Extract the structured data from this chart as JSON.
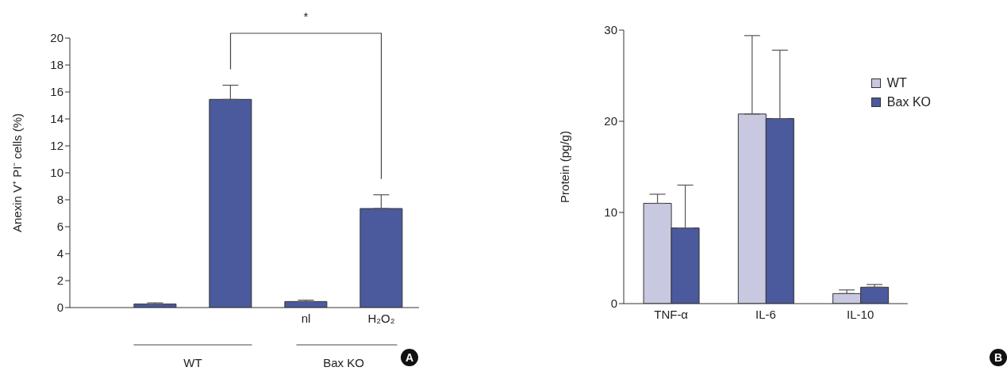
{
  "chart_data": [
    {
      "type": "bar",
      "ylabel": "Anexin V⁺  PI⁻ cells (%)",
      "categories": [
        null,
        null,
        "nl",
        "H₂O₂"
      ],
      "series": [
        {
          "color": "#4b5a9c",
          "values": [
            0.27,
            15.45,
            0.45,
            7.35
          ],
          "errors": [
            [
              0.27,
              0.35
            ],
            [
              15.45,
              16.5
            ],
            [
              0.45,
              0.55
            ],
            [
              7.35,
              8.37
            ]
          ]
        }
      ],
      "ylim": [
        0,
        20
      ],
      "yticks": [
        0,
        2,
        4,
        6,
        8,
        10,
        12,
        14,
        16,
        18,
        20
      ],
      "annotations": [
        "*",
        "WT",
        "Bax KO",
        "A"
      ]
    },
    {
      "type": "bar",
      "ylabel": "Protein (pg/g)",
      "categories": [
        "TNF-α",
        "IL-6",
        "IL-10"
      ],
      "series": [
        {
          "name": "WT",
          "color": "#c8c8e0",
          "values": [
            11.0,
            20.8,
            1.1
          ],
          "errors": [
            [
              11.0,
              12.0
            ],
            [
              20.8,
              29.4
            ],
            [
              1.1,
              1.5
            ]
          ]
        },
        {
          "name": "Bax KO",
          "color": "#4b5a9c",
          "values": [
            8.3,
            20.3,
            1.8
          ],
          "errors": [
            [
              8.3,
              13.0
            ],
            [
              20.3,
              27.8
            ],
            [
              1.8,
              2.1
            ]
          ]
        }
      ],
      "ylim": [
        0,
        30
      ],
      "yticks": [
        0,
        10,
        20,
        30
      ],
      "legend": "top right",
      "annotations": [
        "B"
      ]
    }
  ]
}
